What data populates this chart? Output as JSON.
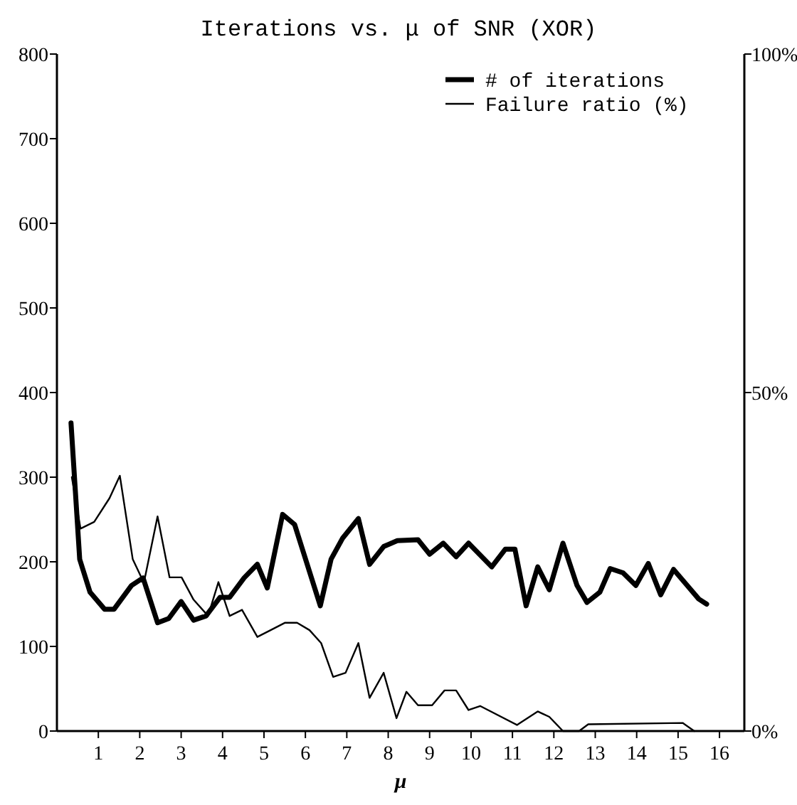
{
  "chart_data": {
    "type": "line",
    "title": "Iterations vs. μ of SNR (XOR)",
    "xlabel": "μ",
    "xlim": [
      0,
      16.6
    ],
    "xticks": [
      1,
      2,
      3,
      4,
      5,
      6,
      7,
      8,
      9,
      10,
      11,
      12,
      13,
      14,
      15,
      16
    ],
    "ylim": [
      0,
      800
    ],
    "yticks": [
      0,
      100,
      200,
      300,
      400,
      500,
      600,
      700,
      800
    ],
    "y2lim": [
      0,
      100
    ],
    "y2ticks": [
      {
        "value": 0,
        "label": "0%"
      },
      {
        "value": 50,
        "label": "50%"
      },
      {
        "value": 100,
        "label": "100%"
      }
    ],
    "legend": "top right",
    "grid": false,
    "marker": "none",
    "line_style": "solid",
    "series": [
      {
        "name": "# of iterations",
        "color": "#000000",
        "x": [
          0.34,
          0.55,
          0.8,
          1.15,
          1.38,
          1.8,
          2.08,
          2.43,
          2.7,
          3.0,
          3.3,
          3.6,
          3.94,
          4.17,
          4.52,
          4.84,
          5.08,
          5.45,
          5.74,
          6.36,
          6.62,
          6.9,
          7.28,
          7.55,
          7.89,
          8.22,
          8.72,
          9.0,
          9.33,
          9.64,
          9.94,
          10.5,
          10.83,
          11.06,
          11.33,
          11.61,
          11.89,
          12.22,
          12.56,
          12.8,
          13.11,
          13.36,
          13.67,
          13.98,
          14.28,
          14.58,
          14.89,
          15.22,
          15.5,
          15.69
        ],
        "values": [
          364,
          203,
          164,
          144,
          144,
          172,
          181,
          128,
          133,
          153,
          131,
          136,
          158,
          158,
          181,
          197,
          169,
          256,
          244,
          148,
          203,
          228,
          251,
          197,
          218,
          225,
          226,
          209,
          222,
          206,
          222,
          194,
          215,
          215,
          148,
          194,
          167,
          222,
          172,
          152,
          164,
          192,
          187,
          172,
          198,
          161,
          191,
          172,
          156,
          150
        ]
      },
      {
        "name": "Failure ratio (%)",
        "color": "#000000",
        "axis": "y2",
        "x": [
          0.36,
          0.57,
          0.9,
          1.27,
          1.52,
          1.83,
          2.1,
          2.43,
          2.72,
          3.01,
          3.3,
          3.65,
          3.9,
          4.17,
          4.47,
          4.84,
          5.16,
          5.51,
          5.8,
          6.1,
          6.38,
          6.67,
          6.97,
          7.28,
          7.55,
          7.89,
          8.2,
          8.44,
          8.72,
          9.06,
          9.36,
          9.64,
          9.94,
          10.22,
          11.11,
          11.61,
          11.89,
          12.22,
          12.61,
          12.83,
          15.11,
          15.39
        ],
        "values": [
          37.5,
          29.9,
          30.9,
          34.4,
          37.7,
          25.4,
          21.9,
          31.7,
          22.7,
          22.7,
          19.4,
          17.0,
          22.0,
          17.0,
          17.9,
          13.9,
          14.9,
          16.0,
          16.0,
          14.9,
          13.0,
          8.0,
          8.6,
          13.0,
          4.9,
          8.6,
          1.9,
          5.8,
          3.8,
          3.8,
          6.0,
          6.0,
          3.1,
          3.7,
          0.9,
          2.9,
          2.1,
          0,
          0,
          1.0,
          1.2,
          0
        ]
      }
    ]
  }
}
